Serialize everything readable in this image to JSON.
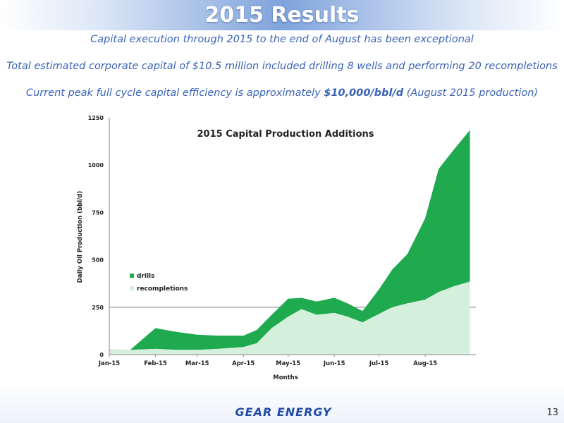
{
  "slide": {
    "title": "2015 Results",
    "bullets": [
      {
        "pre": "Capital execution through 2015 to the end of August has been exceptional",
        "bold": "",
        "post": ""
      },
      {
        "pre": "Total estimated corporate capital of $10.5 million included drilling 8 wells and performing 20 recompletions",
        "bold": "",
        "post": ""
      },
      {
        "pre": "Current peak full cycle capital efficiency is approximately ",
        "bold": "$10,000/bbl/d",
        "post": "  (August 2015 production)"
      }
    ],
    "page_number": "13",
    "logo_text": "GEAR ENERGY"
  },
  "colors": {
    "drills": "#1faa4f",
    "recompletions": "#d4f0dc",
    "bullet_text": "#3a63b8"
  },
  "chart_data": {
    "type": "area",
    "title": "2015 Capital Production Additions",
    "xlabel": "Months",
    "ylabel": "Daily Oil Production (bbl/d)",
    "ylim": [
      0,
      1250
    ],
    "yticks": [
      0,
      250,
      500,
      750,
      1000,
      1250
    ],
    "xtick_labels": [
      "Jan-15",
      "Feb-15",
      "Mar-15",
      "Apr-15",
      "May-15",
      "Jun-15",
      "Jul-15",
      "Aug-15"
    ],
    "gridlines_y": [
      250
    ],
    "legend_position": "left-middle",
    "series": [
      {
        "name": "recompletions",
        "x": [
          "2015-01-01",
          "2015-01-15",
          "2015-02-01",
          "2015-02-15",
          "2015-03-01",
          "2015-03-15",
          "2015-04-01",
          "2015-04-10",
          "2015-04-20",
          "2015-05-01",
          "2015-05-10",
          "2015-05-20",
          "2015-06-01",
          "2015-06-10",
          "2015-06-20",
          "2015-07-01",
          "2015-07-10",
          "2015-07-20",
          "2015-08-01",
          "2015-08-10",
          "2015-08-20",
          "2015-08-31"
        ],
        "values": [
          30,
          25,
          30,
          25,
          25,
          30,
          40,
          60,
          140,
          200,
          240,
          210,
          220,
          200,
          170,
          215,
          250,
          270,
          290,
          330,
          360,
          385
        ]
      },
      {
        "name": "drills",
        "x": [
          "2015-01-01",
          "2015-01-15",
          "2015-02-01",
          "2015-02-15",
          "2015-03-01",
          "2015-03-15",
          "2015-04-01",
          "2015-04-10",
          "2015-04-20",
          "2015-05-01",
          "2015-05-10",
          "2015-05-20",
          "2015-06-01",
          "2015-06-10",
          "2015-06-20",
          "2015-07-01",
          "2015-07-10",
          "2015-07-20",
          "2015-08-01",
          "2015-08-10",
          "2015-08-20",
          "2015-08-31"
        ],
        "values": [
          0,
          0,
          110,
          95,
          80,
          70,
          60,
          70,
          70,
          95,
          60,
          70,
          80,
          70,
          60,
          130,
          200,
          260,
          430,
          650,
          720,
          800
        ]
      }
    ]
  }
}
